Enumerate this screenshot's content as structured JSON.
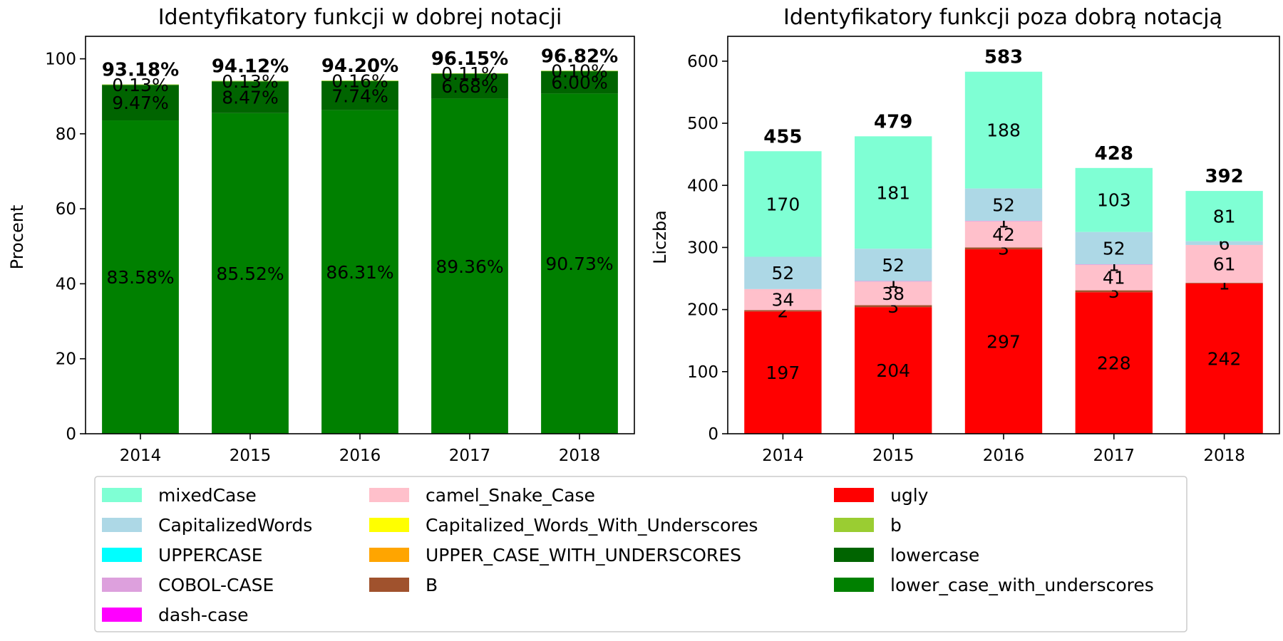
{
  "chart_data": [
    {
      "type": "bar",
      "stacked": true,
      "title": "Identyfikatory funkcji w dobrej notacji",
      "xlabel": "",
      "ylabel": "Procent",
      "categories": [
        "2014",
        "2015",
        "2016",
        "2017",
        "2018"
      ],
      "ylim": [
        0,
        106
      ],
      "yticks": [
        0,
        20,
        40,
        60,
        80,
        100
      ],
      "grid": false,
      "series": [
        {
          "name": "lower_case_with_underscores",
          "color": "#008000",
          "values": [
            83.58,
            85.52,
            86.31,
            89.36,
            90.73
          ],
          "labels": [
            "83.58%",
            "85.52%",
            "86.31%",
            "89.36%",
            "90.73%"
          ]
        },
        {
          "name": "lowercase",
          "color": "#006400",
          "values": [
            9.47,
            8.47,
            7.74,
            6.68,
            6.0
          ],
          "labels": [
            "9.47%",
            "8.47%",
            "7.74%",
            "6.68%",
            "6.00%"
          ]
        },
        {
          "name": "b",
          "color": "#9acd32",
          "values": [
            0.13,
            0.13,
            0.16,
            0.11,
            0.1
          ],
          "labels": [
            "0.13%",
            "0.13%",
            "0.16%",
            "0.11%",
            "0.10%"
          ]
        }
      ],
      "totals": [
        "93.18%",
        "94.12%",
        "94.20%",
        "96.15%",
        "96.82%"
      ]
    },
    {
      "type": "bar",
      "stacked": true,
      "title": "Identyfikatory funkcji poza dobrą notacją",
      "xlabel": "",
      "ylabel": "Liczba",
      "categories": [
        "2014",
        "2015",
        "2016",
        "2017",
        "2018"
      ],
      "ylim": [
        0,
        640
      ],
      "yticks": [
        0,
        100,
        200,
        300,
        400,
        500,
        600
      ],
      "grid": false,
      "series": [
        {
          "name": "ugly",
          "color": "#ff0000",
          "values": [
            197,
            204,
            297,
            228,
            242
          ],
          "labels": [
            "197",
            "204",
            "297",
            "228",
            "242"
          ]
        },
        {
          "name": "B",
          "color": "#a0522d",
          "values": [
            2,
            3,
            3,
            3,
            1
          ],
          "labels": [
            "2",
            "3",
            "3",
            "3",
            "1"
          ]
        },
        {
          "name": "camel_Snake_Case",
          "color": "#ffc0cb",
          "values": [
            34,
            38,
            42,
            41,
            61
          ],
          "labels": [
            "34",
            "38",
            "42",
            "41",
            "61"
          ]
        },
        {
          "name": "COBOL-CASE",
          "color": "#dda0dd",
          "values": [
            0,
            1,
            1,
            1,
            0
          ],
          "labels": [
            "",
            "1",
            "1",
            "1",
            ""
          ]
        },
        {
          "name": "CapitalizedWords",
          "color": "#add8e6",
          "values": [
            52,
            52,
            52,
            52,
            6
          ],
          "labels": [
            "52",
            "52",
            "52",
            "52",
            "6"
          ]
        },
        {
          "name": "mixedCase",
          "color": "#7fffd4",
          "values": [
            170,
            181,
            188,
            103,
            81
          ],
          "labels": [
            "170",
            "181",
            "188",
            "103",
            "81"
          ]
        }
      ],
      "totals": [
        "455",
        "479",
        "583",
        "428",
        "392"
      ]
    }
  ],
  "legend": {
    "placement": "bottom",
    "entries": [
      {
        "label": "mixedCase",
        "color": "#7fffd4"
      },
      {
        "label": "CapitalizedWords",
        "color": "#add8e6"
      },
      {
        "label": "UPPERCASE",
        "color": "#00ffff"
      },
      {
        "label": "COBOL-CASE",
        "color": "#dda0dd"
      },
      {
        "label": "dash-case",
        "color": "#ff00ff"
      },
      {
        "label": "camel_Snake_Case",
        "color": "#ffc0cb"
      },
      {
        "label": "Capitalized_Words_With_Underscores",
        "color": "#ffff00"
      },
      {
        "label": "UPPER_CASE_WITH_UNDERSCORES",
        "color": "#ffa500"
      },
      {
        "label": "B",
        "color": "#a0522d"
      },
      {
        "label": "ugly",
        "color": "#ff0000"
      },
      {
        "label": "b",
        "color": "#9acd32"
      },
      {
        "label": "lowercase",
        "color": "#006400"
      },
      {
        "label": "lower_case_with_underscores",
        "color": "#008000"
      }
    ]
  }
}
